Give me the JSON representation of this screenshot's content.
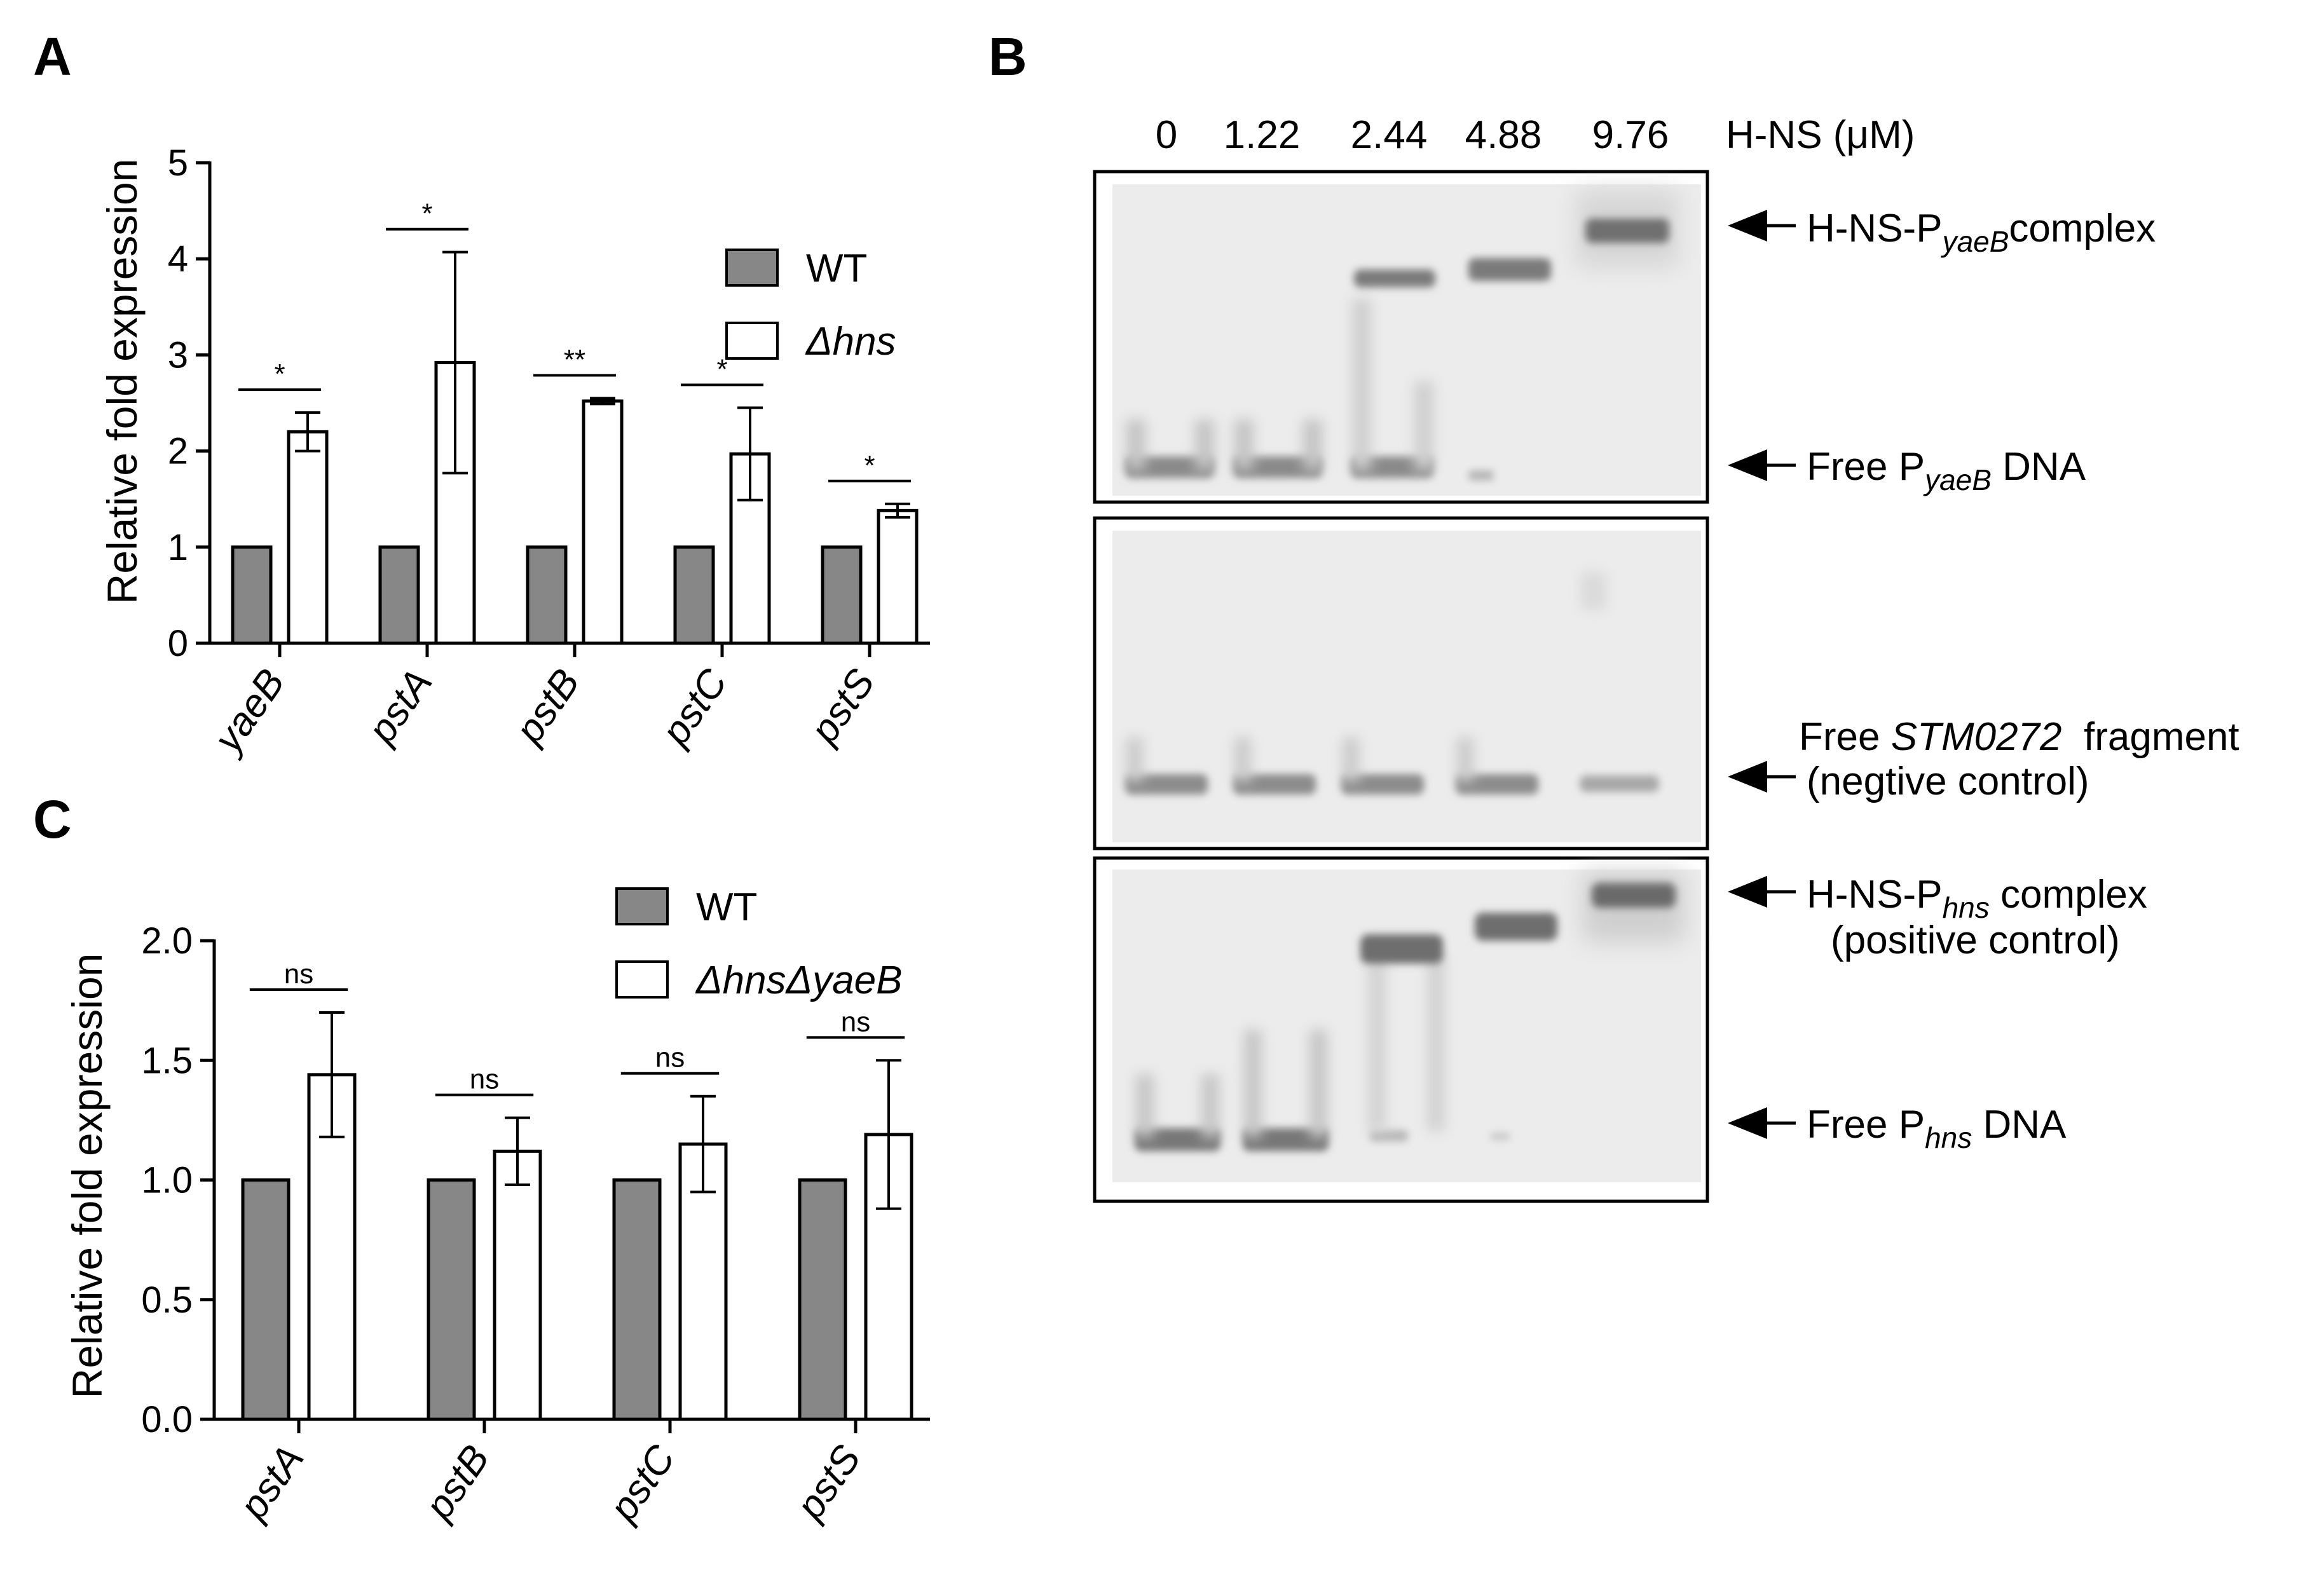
{
  "panels": {
    "A": {
      "letter": "A"
    },
    "B": {
      "letter": "B"
    },
    "C": {
      "letter": "C"
    }
  },
  "chart_data": [
    {
      "panel": "A",
      "type": "bar",
      "ylabel": "Relative fold expression",
      "ylim": [
        0,
        5
      ],
      "yticks": [
        "0",
        "1",
        "2",
        "3",
        "4",
        "5"
      ],
      "categories": [
        "yaeB",
        "pstA",
        "pstB",
        "pstC",
        "pstS"
      ],
      "series": [
        {
          "name": "WT",
          "color": "#878787",
          "values": [
            1,
            1,
            1,
            1,
            1
          ],
          "errors": [
            0,
            0,
            0,
            0,
            0
          ]
        },
        {
          "name": "Δhns",
          "color": "#ffffff",
          "values": [
            2.2,
            2.92,
            2.52,
            1.97,
            1.38
          ],
          "errors": [
            0.2,
            1.15,
            0.03,
            0.48,
            0.07
          ]
        }
      ],
      "significance": [
        "*",
        "*",
        "**",
        "*",
        "*"
      ],
      "legend": {
        "position": "top-right",
        "labels": [
          "WT",
          "Δhns"
        ]
      },
      "grid": false
    },
    {
      "panel": "C",
      "type": "bar",
      "ylabel": "Relative fold expression",
      "ylim": [
        0,
        2
      ],
      "yticks": [
        "0.0",
        "0.5",
        "1.0",
        "1.5",
        "2.0"
      ],
      "categories": [
        "pstA",
        "pstB",
        "pstC",
        "pstS"
      ],
      "series": [
        {
          "name": "WT",
          "color": "#878787",
          "values": [
            1,
            1,
            1,
            1
          ],
          "errors": [
            0,
            0,
            0,
            0
          ]
        },
        {
          "name": "ΔhnsΔyaeB",
          "color": "#ffffff",
          "values": [
            1.44,
            1.12,
            1.15,
            1.19
          ],
          "errors": [
            0.26,
            0.14,
            0.2,
            0.31
          ]
        }
      ],
      "significance": [
        "ns",
        "ns",
        "ns",
        "ns"
      ],
      "legend": {
        "position": "top-right",
        "labels": [
          "WT",
          "ΔhnsΔyaeB"
        ]
      },
      "grid": false
    }
  ],
  "gel": {
    "lanes": [
      "0",
      "1.22",
      "2.44",
      "4.88",
      "9.76"
    ],
    "concentration_label": "H-NS (μM)",
    "labels": {
      "yaeB_complex": {
        "prefix": "H-NS-P",
        "sub": "yaeB",
        "suffix": "complex"
      },
      "yaeB_free": {
        "prefix": "Free P",
        "sub": "yaeB",
        "suffix": " DNA"
      },
      "stm_line1_prefix": "Free ",
      "stm_line1_gene": "STM0272",
      "stm_line1_suffix": "  fragment",
      "stm_line2": "(negtive control)",
      "hns_complex": {
        "prefix": "H-NS-P",
        "sub": "hns",
        "suffix": " complex"
      },
      "hns_complex_line2": "(positive control)",
      "hns_free": {
        "prefix": "Free P",
        "sub": "hns",
        "suffix": " DNA"
      }
    }
  }
}
